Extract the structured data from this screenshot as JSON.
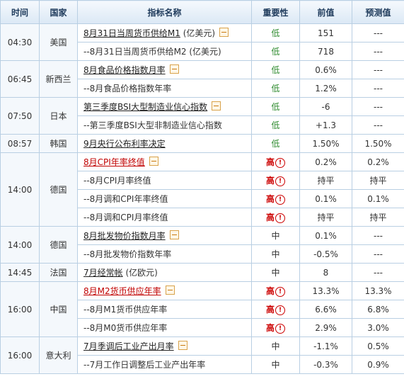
{
  "headers": {
    "time": "时间",
    "country": "国家",
    "name": "指标名称",
    "importance": "重要性",
    "previous": "前值",
    "forecast": "预测值"
  },
  "rows": [
    {
      "time": "04:30",
      "country": "美国",
      "name": "8月31日当周货币供给M1",
      "extra": " (亿美元)",
      "importance": "低",
      "imp": "low",
      "previous": "151",
      "forecast": "---",
      "main": true
    },
    {
      "name": "--8月31日当周货币供给M2 (亿美元)",
      "importance": "低",
      "imp": "low",
      "previous": "718",
      "forecast": "---"
    },
    {
      "time": "06:45",
      "country": "新西兰",
      "name": "8月食品价格指数月率",
      "importance": "低",
      "imp": "low",
      "previous": "0.6%",
      "forecast": "---",
      "main": true
    },
    {
      "name": "--8月食品价格指数年率",
      "importance": "低",
      "imp": "low",
      "previous": "1.2%",
      "forecast": "---"
    },
    {
      "time": "07:50",
      "country": "日本",
      "name": "第三季度BSI大型制造业信心指数",
      "importance": "低",
      "imp": "low",
      "previous": "-6",
      "forecast": "---",
      "main": true
    },
    {
      "name": "--第三季度BSI大型非制造业信心指数",
      "importance": "低",
      "imp": "low",
      "previous": "+1.3",
      "forecast": "---"
    },
    {
      "time": "08:57",
      "country": "韩国",
      "name": "9月央行公布利率决定",
      "importance": "低",
      "imp": "low",
      "previous": "1.50%",
      "forecast": "1.50%",
      "main": true,
      "noexpand": true
    },
    {
      "time": "14:00",
      "country": "德国",
      "name": "8月CPI年率终值",
      "importance": "高",
      "imp": "high",
      "previous": "0.2%",
      "forecast": "0.2%",
      "main": true,
      "red": true
    },
    {
      "name": "--8月CPI月率终值",
      "importance": "高",
      "imp": "high",
      "previous": "持平",
      "forecast": "持平"
    },
    {
      "name": "--8月调和CPI年率终值",
      "importance": "高",
      "imp": "high",
      "previous": "0.1%",
      "forecast": "0.1%"
    },
    {
      "name": "--8月调和CPI月率终值",
      "importance": "高",
      "imp": "high",
      "previous": "持平",
      "forecast": "持平"
    },
    {
      "time": "14:00",
      "country": "德国",
      "name": "8月批发物价指数月率",
      "importance": "中",
      "imp": "mid",
      "previous": "0.1%",
      "forecast": "---",
      "main": true
    },
    {
      "name": "--8月批发物价指数年率",
      "importance": "中",
      "imp": "mid",
      "previous": "-0.5%",
      "forecast": "---"
    },
    {
      "time": "14:45",
      "country": "法国",
      "name": "7月经常帐",
      "extra": " (亿欧元)",
      "importance": "中",
      "imp": "mid",
      "previous": "8",
      "forecast": "---",
      "main": true,
      "noexpand": true
    },
    {
      "time": "16:00",
      "country": "中国",
      "name": "8月M2货币供应年率",
      "importance": "高",
      "imp": "high",
      "previous": "13.3%",
      "forecast": "13.3%",
      "main": true,
      "red": true
    },
    {
      "name": "--8月M1货币供应年率",
      "importance": "高",
      "imp": "high",
      "previous": "6.6%",
      "forecast": "6.8%"
    },
    {
      "name": "--8月M0货币供应年率",
      "importance": "高",
      "imp": "high",
      "previous": "2.9%",
      "forecast": "3.0%"
    },
    {
      "time": "16:00",
      "country": "意大利",
      "name": "7月季调后工业产出月率",
      "importance": "中",
      "imp": "mid",
      "previous": "-1.1%",
      "forecast": "0.5%",
      "main": true
    },
    {
      "name": "--7月工作日调整后工业产出年率",
      "importance": "中",
      "imp": "mid",
      "previous": "-0.3%",
      "forecast": "0.9%"
    }
  ],
  "alert_glyph": "!"
}
